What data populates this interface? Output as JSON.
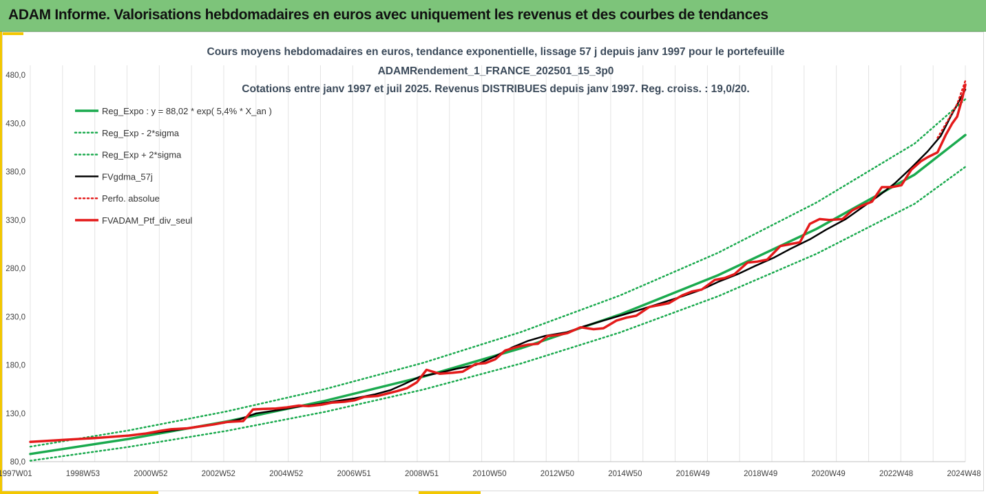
{
  "banner": {
    "title": "ADAM Informe. Valorisations hebdomadaires en euros avec uniquement les revenus et des courbes de tendances"
  },
  "colors": {
    "banner_bg": "#7dc47a",
    "accent_yellow": "#f3c700",
    "trend_green": "#1aaa4e",
    "gdma_black": "#000000",
    "perf_red": "#e41a1a"
  },
  "chart_data": {
    "type": "line",
    "title_lines": [
      "Cours moyens hebdomadaires  en euros, tendance exponentielle, lissage 57 j depuis janv 1997 pour le portefeuille",
      "ADAMRendement_1_FRANCE_202501_15_3p0",
      "Cotations  entre janv 1997 et juil 2025. Revenus DISTRIBUES depuis janv 1997. Reg. croiss. : 19,0/20."
    ],
    "x_ticks": [
      "1997W01",
      "1998W53",
      "2000W52",
      "2002W52",
      "2004W52",
      "2006W51",
      "2008W51",
      "2010W50",
      "2012W50",
      "2014W50",
      "2016W49",
      "2018W49",
      "2020W49",
      "2022W48",
      "2024W48"
    ],
    "y_ticks": [
      "80,0",
      "130,0",
      "180,0",
      "230,0",
      "280,0",
      "330,0",
      "380,0",
      "430,0",
      "480,0"
    ],
    "ylim": [
      80,
      490
    ],
    "xlim": [
      1997.0,
      2025.55
    ],
    "grid": "vertical",
    "legend_position": "top-left",
    "series": [
      {
        "name": "Reg_Expo : y = 88,02 * exp( 5,4% *  X_an )",
        "color": "#1aaa4e",
        "style": "solid",
        "width": 3.5,
        "x": [
          1997.0,
          2000.0,
          2003.0,
          2006.0,
          2009.0,
          2012.0,
          2015.0,
          2018.0,
          2021.0,
          2024.0,
          2025.55
        ],
        "y": [
          88.0,
          103.5,
          121.6,
          142.9,
          168.0,
          197.5,
          232.2,
          272.9,
          320.7,
          377.0,
          418.0
        ]
      },
      {
        "name": "Reg_Exp - 2*sigma",
        "color": "#1aaa4e",
        "style": "dotted",
        "width": 2.5,
        "x": [
          1997.0,
          2000.0,
          2003.0,
          2006.0,
          2009.0,
          2012.0,
          2015.0,
          2018.0,
          2021.0,
          2024.0,
          2025.55
        ],
        "y": [
          81.0,
          95.2,
          111.9,
          131.5,
          154.6,
          181.7,
          213.6,
          251.1,
          295.0,
          346.8,
          385.0
        ]
      },
      {
        "name": "Reg_Exp + 2*sigma",
        "color": "#1aaa4e",
        "style": "dotted",
        "width": 2.5,
        "x": [
          1997.0,
          2000.0,
          2003.0,
          2006.0,
          2009.0,
          2012.0,
          2015.0,
          2018.0,
          2021.0,
          2024.0,
          2025.55
        ],
        "y": [
          95.5,
          112.3,
          132.0,
          155.1,
          182.3,
          214.3,
          251.9,
          296.1,
          348.0,
          409.1,
          455.0
        ]
      },
      {
        "name": "FVgdma_57j",
        "color": "#000000",
        "style": "solid",
        "width": 2.5,
        "x": [
          1997.0,
          1998.0,
          1999.0,
          2000.0,
          2000.9,
          2001.5,
          2002.3,
          2002.9,
          2003.4,
          2003.9,
          2004.6,
          2005.1,
          2005.8,
          2006.3,
          2006.9,
          2007.5,
          2008.0,
          2008.4,
          2008.9,
          2009.5,
          2010.0,
          2010.6,
          2011.2,
          2011.7,
          2012.2,
          2012.7,
          2013.4,
          2013.9,
          2014.5,
          2015.1,
          2015.7,
          2016.3,
          2016.9,
          2017.5,
          2018.0,
          2018.6,
          2019.1,
          2019.7,
          2020.2,
          2020.8,
          2021.3,
          2021.9,
          2022.4,
          2022.9,
          2023.4,
          2023.9,
          2024.4,
          2024.8,
          2025.1,
          2025.55
        ],
        "y": [
          100.5,
          102.5,
          104.5,
          107.0,
          110.5,
          113.0,
          117.0,
          120.0,
          124.0,
          130.0,
          133.5,
          136.5,
          139.5,
          142.5,
          145.5,
          149.5,
          154.0,
          160.0,
          168.0,
          172.0,
          176.0,
          180.0,
          189.0,
          198.0,
          205.0,
          210.0,
          214.0,
          220.0,
          226.0,
          232.0,
          238.0,
          244.5,
          251.0,
          258.0,
          266.0,
          274.0,
          282.0,
          291.0,
          300.0,
          310.0,
          320.0,
          331.0,
          343.0,
          355.0,
          368.0,
          384.0,
          401.0,
          417.0,
          437.0,
          465.0
        ]
      },
      {
        "name": "Perfo. absolue",
        "color": "#e41a1a",
        "style": "dotted",
        "width": 2.5,
        "x": [
          2024.7,
          2025.0,
          2025.3,
          2025.55
        ],
        "y": [
          415.0,
          432.0,
          450.0,
          474.0
        ]
      },
      {
        "name": "FVADAM_Ptf_div_seul",
        "color": "#e41a1a",
        "style": "solid",
        "width": 3.5,
        "x": [
          1997.0,
          1998.0,
          1999.0,
          2000.0,
          2000.5,
          2001.0,
          2001.3,
          2001.8,
          2002.3,
          2002.6,
          2003.0,
          2003.2,
          2003.5,
          2003.8,
          2004.1,
          2004.5,
          2004.8,
          2005.2,
          2005.5,
          2005.9,
          2006.2,
          2006.6,
          2006.9,
          2007.2,
          2007.6,
          2007.9,
          2008.2,
          2008.5,
          2008.8,
          2009.1,
          2009.5,
          2009.9,
          2010.2,
          2010.6,
          2010.9,
          2011.2,
          2011.5,
          2011.9,
          2012.2,
          2012.5,
          2012.8,
          2013.1,
          2013.4,
          2013.8,
          2014.2,
          2014.5,
          2014.9,
          2015.2,
          2015.5,
          2015.9,
          2016.2,
          2016.5,
          2016.9,
          2017.2,
          2017.5,
          2017.9,
          2018.2,
          2018.5,
          2018.9,
          2019.2,
          2019.5,
          2019.9,
          2020.2,
          2020.5,
          2020.8,
          2021.1,
          2021.4,
          2021.8,
          2022.1,
          2022.4,
          2022.7,
          2023.0,
          2023.3,
          2023.6,
          2023.9,
          2024.2,
          2024.4,
          2024.7,
          2024.95,
          2025.15,
          2025.3,
          2025.45,
          2025.55
        ],
        "y": [
          100.5,
          102.5,
          104.5,
          107.0,
          109.0,
          112.0,
          113.5,
          114.5,
          117.0,
          118.5,
          121.0,
          121.5,
          122.0,
          134.0,
          134.5,
          135.0,
          136.0,
          138.0,
          137.5,
          139.0,
          141.0,
          142.0,
          143.5,
          147.0,
          148.0,
          150.5,
          153.0,
          156.0,
          162.0,
          175.0,
          171.0,
          172.0,
          173.0,
          181.0,
          182.0,
          186.0,
          195.0,
          199.0,
          201.0,
          202.0,
          210.0,
          211.0,
          213.0,
          219.0,
          217.0,
          218.0,
          226.0,
          229.0,
          231.0,
          240.0,
          242.0,
          244.0,
          252.0,
          256.0,
          258.0,
          268.0,
          270.0,
          274.0,
          286.0,
          287.0,
          289.0,
          303.0,
          305.0,
          307.0,
          326.0,
          331.0,
          330.0,
          331.0,
          340.0,
          345.0,
          349.0,
          364.0,
          364.0,
          366.0,
          382.0,
          391.0,
          395.0,
          400.0,
          418.0,
          430.0,
          437.0,
          455.0,
          470.0
        ]
      }
    ]
  }
}
